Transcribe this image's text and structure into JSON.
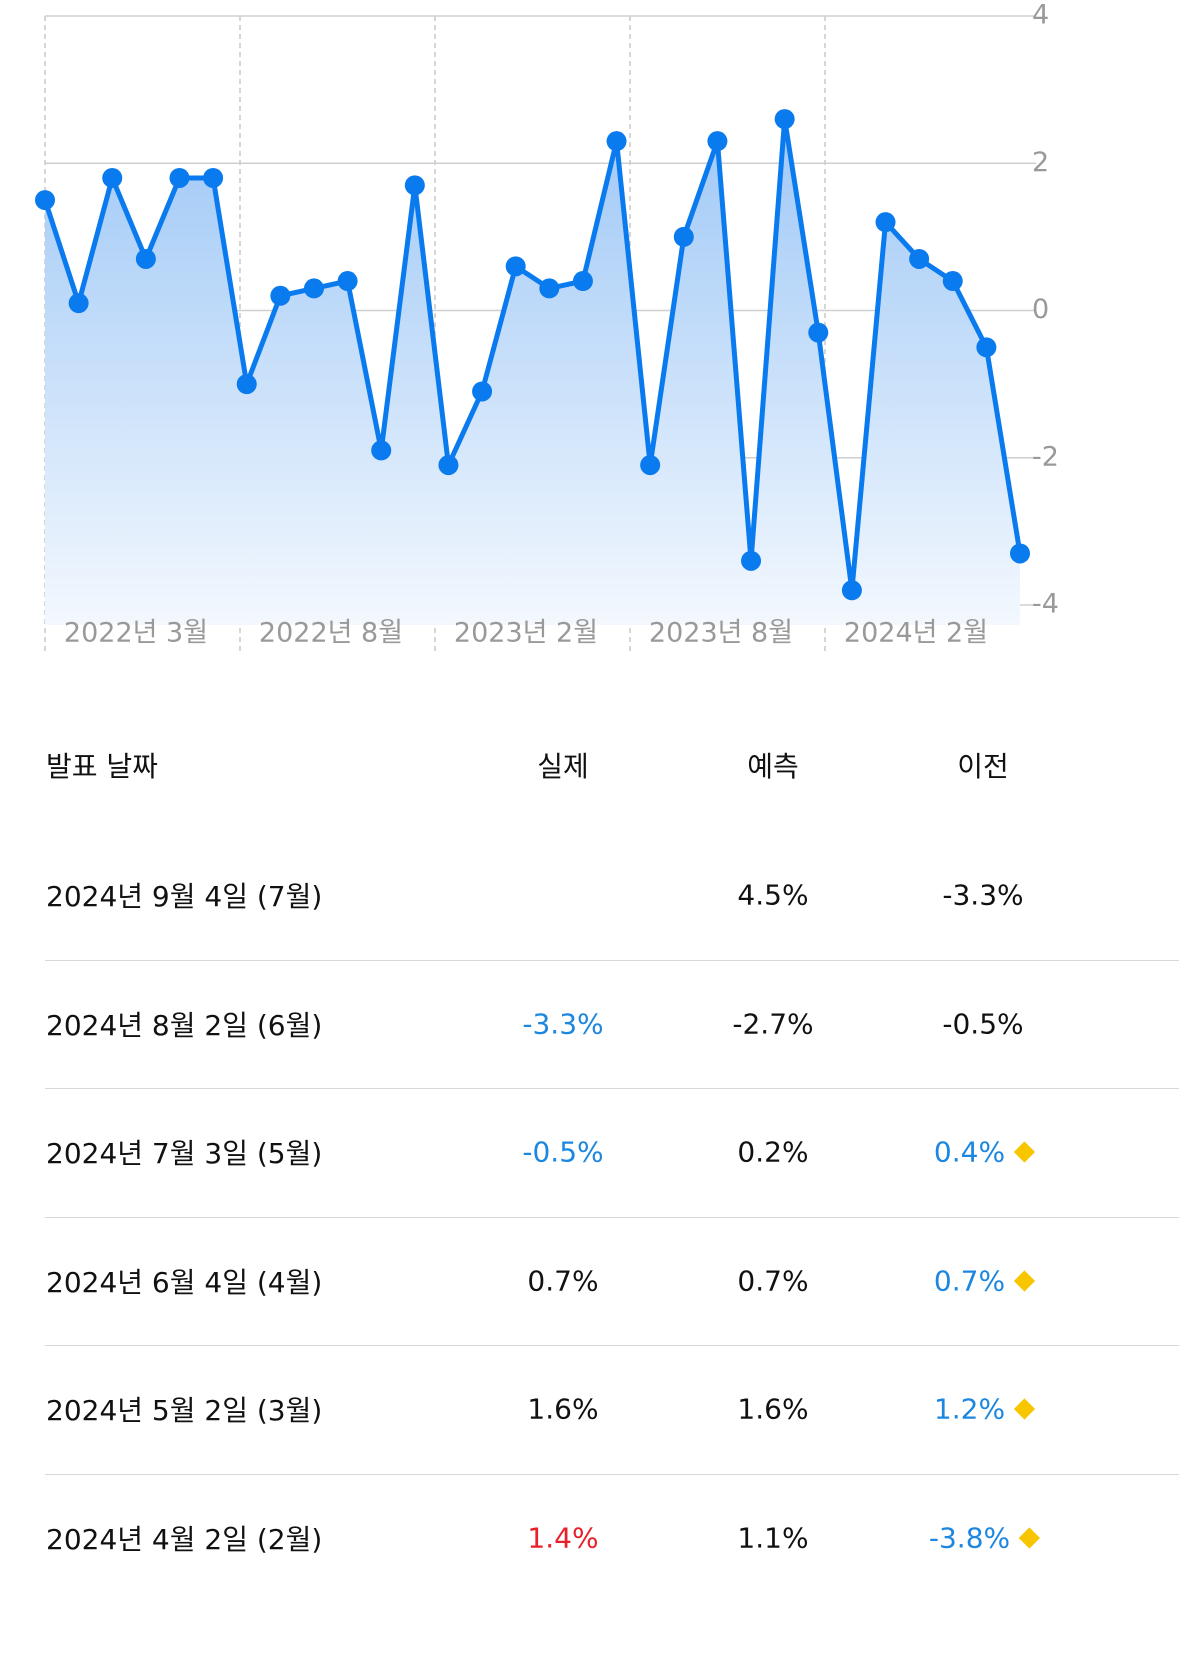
{
  "chart_data": {
    "type": "line",
    "color": "#0a7aef",
    "values": [
      1.5,
      0.1,
      1.8,
      0.7,
      1.8,
      1.8,
      -1.0,
      0.2,
      0.3,
      0.4,
      -1.9,
      1.7,
      -2.1,
      -1.1,
      0.6,
      0.3,
      0.4,
      2.3,
      -2.1,
      1.0,
      2.3,
      -3.4,
      2.6,
      -0.3,
      -3.8,
      1.2,
      0.7,
      0.4,
      -0.5,
      -3.3
    ],
    "x_labels": [
      "2022년 3월",
      "2022년 8월",
      "2023년 2월",
      "2023년 8월",
      "2024년 2월"
    ],
    "ylim": [
      -4,
      4
    ],
    "yticks": [
      4,
      2,
      0,
      -2,
      -4
    ],
    "grid": true
  },
  "table": {
    "header": [
      "발표 날짜",
      "실제",
      "예측",
      "이전"
    ],
    "rows": [
      {
        "cells": [
          "2024년 9월 4일 (7월)",
          "",
          "4.5%",
          "-3.3%"
        ],
        "colors": [
          "#111",
          "#111",
          "#111",
          "#111"
        ],
        "revised": false
      },
      {
        "cells": [
          "2024년 8월 2일 (6월)",
          "-3.3%",
          "-2.7%",
          "-0.5%"
        ],
        "colors": [
          "#111",
          "#1b87e0",
          "#111",
          "#111"
        ],
        "revised": false
      },
      {
        "cells": [
          "2024년 7월 3일 (5월)",
          "-0.5%",
          "0.2%",
          "0.4%"
        ],
        "colors": [
          "#111",
          "#1b87e0",
          "#111",
          "#1b87e0"
        ],
        "revised": true
      },
      {
        "cells": [
          "2024년 6월 4일 (4월)",
          "0.7%",
          "0.7%",
          "0.7%"
        ],
        "colors": [
          "#111",
          "#111",
          "#111",
          "#1b87e0"
        ],
        "revised": true
      },
      {
        "cells": [
          "2024년 5월 2일 (3월)",
          "1.6%",
          "1.6%",
          "1.2%"
        ],
        "colors": [
          "#111",
          "#111",
          "#111",
          "#1b87e0"
        ],
        "revised": true
      },
      {
        "cells": [
          "2024년 4월 2일 (2월)",
          "1.4%",
          "1.1%",
          "-3.8%"
        ],
        "colors": [
          "#111",
          "#e8202a",
          "#111",
          "#1b87e0"
        ],
        "revised": true
      }
    ]
  }
}
